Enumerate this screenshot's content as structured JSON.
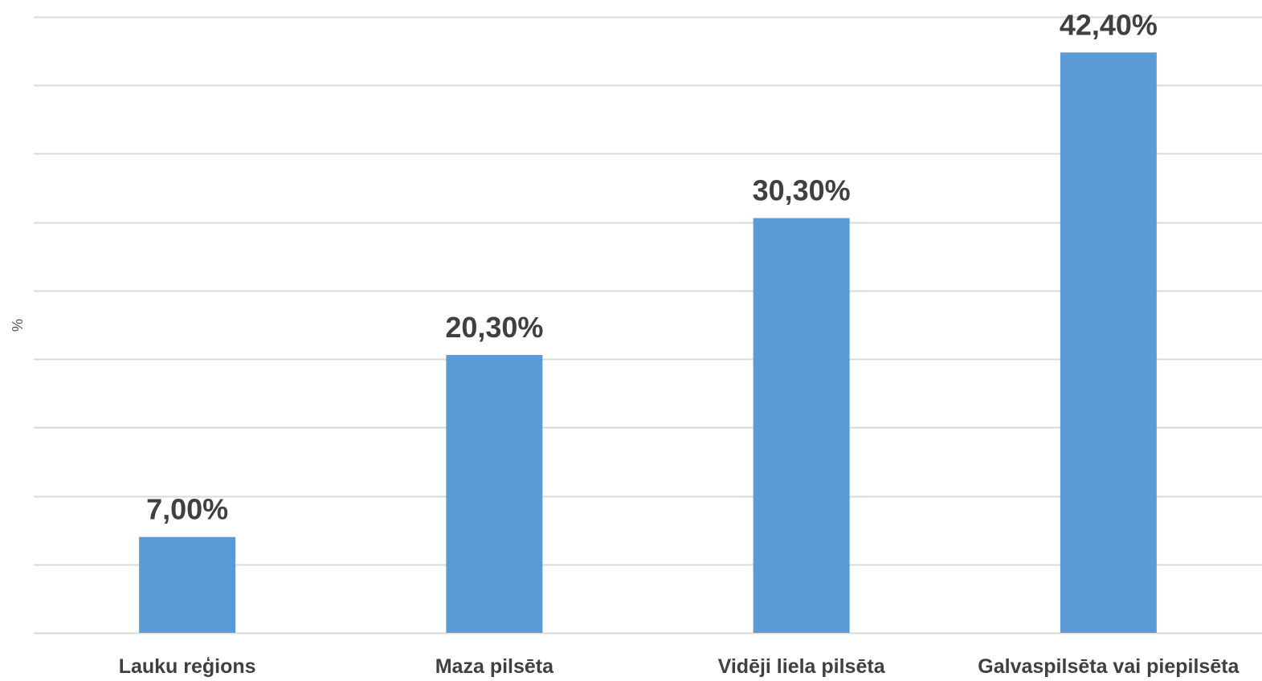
{
  "chart_data": {
    "type": "bar",
    "title": "",
    "xlabel": "",
    "ylabel": "%",
    "categories": [
      "Lauku reģions",
      "Maza pilsēta",
      "Vidēji liela pilsēta",
      "Galvaspilsēta vai piepilsēta"
    ],
    "values": [
      7.0,
      20.3,
      30.3,
      42.4
    ],
    "data_labels": [
      "7,00%",
      "20,30%",
      "30,30%",
      "42,40%"
    ],
    "ylim": [
      0,
      45
    ],
    "y_gridline_step": 5,
    "y_tick_labels_visible": false,
    "grid": true,
    "legend": "none",
    "bar_color": "#5b9bd5"
  }
}
